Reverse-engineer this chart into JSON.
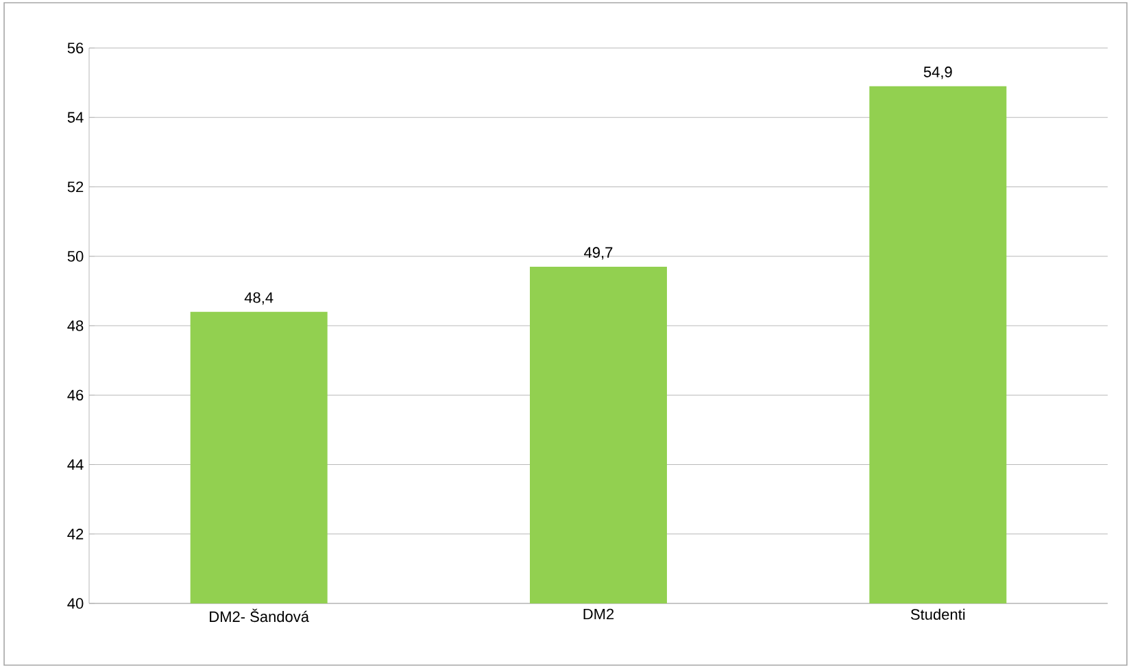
{
  "chart_data": {
    "type": "bar",
    "categories": [
      "DM2- Šandová",
      "DM2",
      "Studenti"
    ],
    "values": [
      48.4,
      49.7,
      54.9
    ],
    "value_labels": [
      "48,4",
      "49,7",
      "54,9"
    ],
    "color": "#92d050",
    "ylim": [
      40,
      56
    ],
    "yticks": [
      40,
      42,
      44,
      46,
      48,
      50,
      52,
      54,
      56
    ],
    "grid": "y"
  }
}
